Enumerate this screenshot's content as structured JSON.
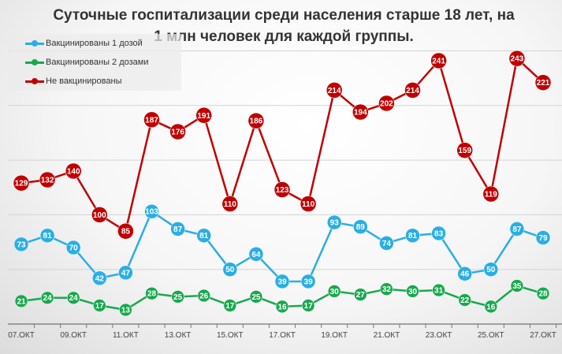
{
  "chart_data": {
    "type": "line",
    "title": "Суточные госпитализации среди населения старше 18 лет, на 1 млн человек для каждой группы.",
    "x": [
      "07.ОКТ",
      "08.ОКТ",
      "09.ОКТ",
      "10.ОКТ",
      "11.ОКТ",
      "12.ОКТ",
      "13.ОКТ",
      "14.ОКТ",
      "15.ОКТ",
      "16.ОКТ",
      "17.ОКТ",
      "18.ОКТ",
      "19.ОКТ",
      "20.ОКТ",
      "21.ОКТ",
      "22.ОКТ",
      "23.ОКТ",
      "24.ОКТ",
      "25.ОКТ",
      "26.ОКТ",
      "27.ОКТ"
    ],
    "tick_labels": [
      "07.ОКТ",
      "09.ОКТ",
      "11.ОКТ",
      "13.ОКТ",
      "15.ОКТ",
      "17.ОКТ",
      "19.ОКТ",
      "21.ОКТ",
      "23.ОКТ",
      "25.ОКТ",
      "27.ОКТ"
    ],
    "ylim": [
      0,
      260
    ],
    "grid": true,
    "legend_position": "top-left",
    "series": [
      {
        "name": "Вакцинированы 1 дозой",
        "color": "#2aaee4",
        "values": [
          73,
          81,
          70,
          42,
          47,
          103,
          87,
          81,
          50,
          64,
          39,
          39,
          93,
          89,
          74,
          81,
          83,
          46,
          50,
          87,
          79
        ]
      },
      {
        "name": "Вакцинированы 2 дозами",
        "color": "#19a84e",
        "values": [
          21,
          24,
          24,
          17,
          13,
          28,
          25,
          26,
          17,
          25,
          16,
          17,
          30,
          27,
          32,
          30,
          31,
          22,
          16,
          35,
          28
        ]
      },
      {
        "name": "Не вакцинированы",
        "color": "#c00000",
        "values": [
          129,
          132,
          140,
          100,
          85,
          187,
          176,
          191,
          110,
          186,
          123,
          110,
          214,
          194,
          202,
          214,
          241,
          159,
          119,
          243,
          221
        ]
      }
    ]
  }
}
